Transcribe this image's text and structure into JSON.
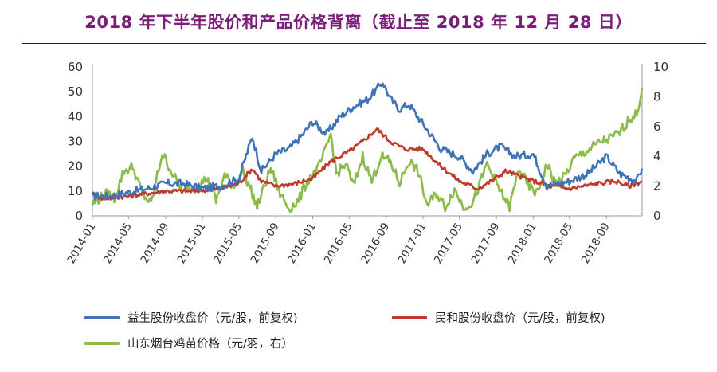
{
  "title": "2018 年下半年股价和产品价格背离（截止至 2018 年 12 月 28 日）",
  "chart_data": {
    "type": "line",
    "x_tick_labels": [
      "2014-01",
      "2014-05",
      "2014-09",
      "2015-01",
      "2015-05",
      "2015-09",
      "2016-01",
      "2016-05",
      "2016-09",
      "2017-01",
      "2017-05",
      "2017-09",
      "2018-01",
      "2018-05",
      "2018-09"
    ],
    "x_range": [
      "2014-01-01",
      "2018-12-28"
    ],
    "ylim_left": [
      0,
      60
    ],
    "yticks_left": [
      "0",
      "10",
      "20",
      "30",
      "40",
      "50",
      "60"
    ],
    "ylim_right": [
      0,
      10
    ],
    "yticks_right": [
      "0",
      "2",
      "4",
      "6",
      "8",
      "10"
    ],
    "grid": false,
    "legend_position": "bottom",
    "series": [
      {
        "name": "益生股份收盘价（元/股，前复权)",
        "axis": "left",
        "color": "#3f73b8",
        "points": [
          [
            "2014-01-01",
            8
          ],
          [
            "2014-03-01",
            8
          ],
          [
            "2014-05-01",
            9.5
          ],
          [
            "2014-07-01",
            11
          ],
          [
            "2014-09-01",
            13
          ],
          [
            "2014-11-01",
            13
          ],
          [
            "2015-01-01",
            11
          ],
          [
            "2015-03-01",
            12
          ],
          [
            "2015-05-01",
            15
          ],
          [
            "2015-06-15",
            32
          ],
          [
            "2015-07-15",
            18
          ],
          [
            "2015-09-01",
            25
          ],
          [
            "2015-10-15",
            27
          ],
          [
            "2015-12-01",
            33
          ],
          [
            "2016-01-01",
            38
          ],
          [
            "2016-02-15",
            33
          ],
          [
            "2016-04-01",
            40
          ],
          [
            "2016-05-15",
            44
          ],
          [
            "2016-07-01",
            47
          ],
          [
            "2016-08-01",
            51
          ],
          [
            "2016-08-20",
            54
          ],
          [
            "2016-09-15",
            47
          ],
          [
            "2016-10-15",
            43
          ],
          [
            "2016-11-15",
            45
          ],
          [
            "2017-01-01",
            37
          ],
          [
            "2017-03-01",
            27
          ],
          [
            "2017-05-01",
            24
          ],
          [
            "2017-06-15",
            18
          ],
          [
            "2017-08-01",
            25
          ],
          [
            "2017-09-15",
            28
          ],
          [
            "2017-11-01",
            24
          ],
          [
            "2018-01-01",
            25
          ],
          [
            "2018-02-15",
            12
          ],
          [
            "2018-05-01",
            14
          ],
          [
            "2018-07-01",
            17
          ],
          [
            "2018-09-01",
            24
          ],
          [
            "2018-10-15",
            17
          ],
          [
            "2018-12-10",
            14
          ],
          [
            "2018-12-28",
            19
          ]
        ]
      },
      {
        "name": "民和股份收盘价（元/股，前复权)",
        "axis": "left",
        "color": "#c0392b",
        "points": [
          [
            "2014-01-01",
            9
          ],
          [
            "2014-02-01",
            7
          ],
          [
            "2014-05-01",
            8
          ],
          [
            "2014-09-01",
            10
          ],
          [
            "2014-12-01",
            10
          ],
          [
            "2015-03-01",
            11
          ],
          [
            "2015-05-01",
            13
          ],
          [
            "2015-06-15",
            19
          ],
          [
            "2015-07-15",
            14
          ],
          [
            "2015-09-01",
            12
          ],
          [
            "2015-11-01",
            13
          ],
          [
            "2016-01-01",
            15
          ],
          [
            "2016-03-01",
            22
          ],
          [
            "2016-05-01",
            26
          ],
          [
            "2016-06-15",
            30
          ],
          [
            "2016-08-01",
            35
          ],
          [
            "2016-09-15",
            30
          ],
          [
            "2016-11-01",
            27
          ],
          [
            "2017-01-01",
            27
          ],
          [
            "2017-03-01",
            20
          ],
          [
            "2017-05-01",
            14
          ],
          [
            "2017-07-01",
            11
          ],
          [
            "2017-08-15",
            14
          ],
          [
            "2017-10-01",
            18
          ],
          [
            "2018-01-01",
            14
          ],
          [
            "2018-03-01",
            12
          ],
          [
            "2018-05-01",
            11
          ],
          [
            "2018-08-01",
            13
          ],
          [
            "2018-10-01",
            14
          ],
          [
            "2018-11-15",
            12
          ],
          [
            "2018-12-28",
            14
          ]
        ]
      },
      {
        "name": "山东烟台鸡苗价格（元/羽，右）",
        "axis": "right",
        "color": "#8bbb4a",
        "points": [
          [
            "2014-01-01",
            0.8
          ],
          [
            "2014-02-15",
            1.5
          ],
          [
            "2014-03-15",
            1.2
          ],
          [
            "2014-04-15",
            3.0
          ],
          [
            "2014-05-15",
            3.3
          ],
          [
            "2014-06-15",
            1.5
          ],
          [
            "2014-07-15",
            0.8
          ],
          [
            "2014-08-20",
            4.2
          ],
          [
            "2014-09-15",
            3.2
          ],
          [
            "2014-10-15",
            2.0
          ],
          [
            "2014-12-01",
            1.8
          ],
          [
            "2015-01-15",
            2.5
          ],
          [
            "2015-02-15",
            1.0
          ],
          [
            "2015-03-15",
            2.7
          ],
          [
            "2015-04-15",
            2.0
          ],
          [
            "2015-05-15",
            3.0
          ],
          [
            "2015-06-15",
            1.5
          ],
          [
            "2015-07-01",
            0.6
          ],
          [
            "2015-08-15",
            3.2
          ],
          [
            "2015-09-15",
            1.5
          ],
          [
            "2015-10-15",
            0.5
          ],
          [
            "2015-11-15",
            1.0
          ],
          [
            "2015-12-15",
            2.4
          ],
          [
            "2016-01-15",
            3.0
          ],
          [
            "2016-02-15",
            4.5
          ],
          [
            "2016-03-01",
            5.5
          ],
          [
            "2016-03-20",
            2.8
          ],
          [
            "2016-04-20",
            3.5
          ],
          [
            "2016-05-15",
            2.0
          ],
          [
            "2016-06-15",
            4.0
          ],
          [
            "2016-07-15",
            2.3
          ],
          [
            "2016-08-15",
            4.0
          ],
          [
            "2016-09-15",
            3.6
          ],
          [
            "2016-10-15",
            2.2
          ],
          [
            "2016-11-15",
            3.7
          ],
          [
            "2016-12-15",
            3.0
          ],
          [
            "2017-01-15",
            0.7
          ],
          [
            "2017-02-15",
            1.5
          ],
          [
            "2017-03-15",
            0.6
          ],
          [
            "2017-04-15",
            1.8
          ],
          [
            "2017-05-15",
            0.6
          ],
          [
            "2017-06-15",
            0.9
          ],
          [
            "2017-07-15",
            2.5
          ],
          [
            "2017-08-01",
            3.5
          ],
          [
            "2017-09-15",
            1.6
          ],
          [
            "2017-10-15",
            0.6
          ],
          [
            "2017-11-15",
            3.2
          ],
          [
            "2017-12-15",
            2.0
          ],
          [
            "2018-01-15",
            1.5
          ],
          [
            "2018-02-15",
            3.5
          ],
          [
            "2018-03-15",
            2.2
          ],
          [
            "2018-04-15",
            2.6
          ],
          [
            "2018-05-15",
            3.8
          ],
          [
            "2018-06-15",
            4.2
          ],
          [
            "2018-07-15",
            4.6
          ],
          [
            "2018-08-15",
            5.0
          ],
          [
            "2018-09-15",
            5.2
          ],
          [
            "2018-10-15",
            5.6
          ],
          [
            "2018-11-15",
            6.5
          ],
          [
            "2018-12-10",
            6.8
          ],
          [
            "2018-12-28",
            8.6
          ]
        ]
      }
    ]
  }
}
